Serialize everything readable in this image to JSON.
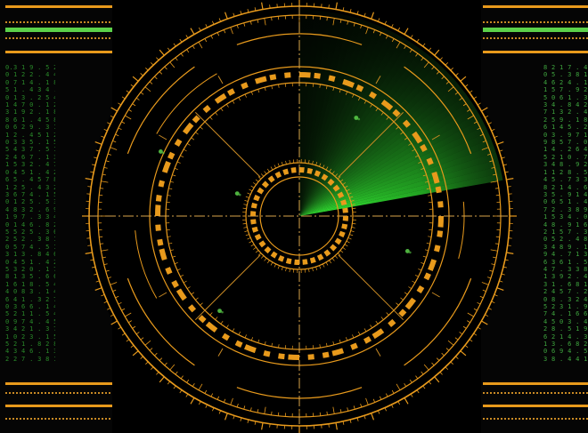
{
  "colors": {
    "amber": "#e89a1c",
    "amber_dim": "#b57b1e",
    "green": "#5cd14a",
    "sweep": "#39ff39",
    "background": "#000000"
  },
  "radar": {
    "sweep_start_deg": -90,
    "sweep_end_deg": -10,
    "blips": [
      {
        "angle_deg": 205,
        "range": 0.74
      },
      {
        "angle_deg": 200,
        "range": 0.32
      },
      {
        "angle_deg": 18,
        "range": 0.55
      },
      {
        "angle_deg": 130,
        "range": 0.6
      },
      {
        "angle_deg": 300,
        "range": 0.55
      }
    ]
  },
  "left_panel": {
    "lines": [
      "0.3 1 9 . 5 2 7",
      "0 1 2 2 . 4 4 9",
      "0 7 1 4 . 1 8 7",
      "5 1 . 4 3 4 . 4",
      "0 1 3 . 2 5 4 4",
      "1 4 7 0 . 1 2 4",
      "3 1 9 2 . 1 8 4",
      "8 6 1 . 4 5 8 9",
      "0 6 2 9 . 3 1 8",
      "1 2 . 4 5 1 2 5",
      "0 3 3 5 . 1 5 6",
      "5 4 3 7 . 5 1 4",
      "2 4 6 7 . 1 3 6",
      "1 5 3 2 . 4 7 3",
      "0 4 5 1 . 4 2 2",
      "6 5 . 4 5 7 8 3",
      "1 2 5 . 4 3 2 6",
      "3 6 7 4 . 1 5 2",
      "0 1 2 5 . 5 3 6",
      "4 8 3 2 . 6 9 1",
      "1 9 7 . 3 3 4 6",
      "0 1 4 6 . 8 2 4",
      "5 5 2 5 . 3 6 4",
      "2 5 2 . 3 8 1 4",
      "0 5 7 4 . 5 1 2",
      "3 1 3 . 8 4 6 1",
      "0 4 5 1 . 4 2 9",
      "5 3 2 0 . 1 7 3",
      "8 1 3 5 . 6 6 4",
      "1 6 1 8 . 5 4 0",
      "4 0 8 3 . 1 4 0",
      "6 4 1 . 3 2 7 8",
      "0 3 6 6 . 1 4 1",
      "5 2 1 1 . 5 4 7",
      "0 9 7 4 . 4 5 2",
      "3 4 2 1 . 3 7 6",
      "1 0 2 3 . 1 5 1",
      "5 2 1 . 8 2 8 0",
      "4 3 4 6 . 1 3 4",
      "2 2 7 . 3 8 1 4"
    ]
  },
  "right_panel": {
    "lines": [
      "8 2 1 7 . 4",
      "0 5 . 3 8 1",
      "4 6 2 4 . 1",
      "1 5 7 . 9 2",
      "5 0 6 1 . 3",
      "3 4 . 8 4 2",
      "7 1 3 2 . 4",
      "2 5 9 . 1 8",
      "6 1 4 5 . 2",
      "0 3 . 9 7 1",
      "9 8 5 7 . 0",
      "1 4 . 2 6 4",
      "5 2 1 0 . 7",
      "3 4 8 . 9 2",
      "1 1 2 8 . 5",
      "4 5 . 7 3 3",
      "8 2 1 4 . 6",
      "3 5 . 9 1 4",
      "0 6 5 1 . 4",
      "7 2 . 3 8 9",
      "1 5 3 4 . 0",
      "4 8 . 9 1 6",
      "2 1 5 7 . 3",
      "0 5 2 . 4 8",
      "3 4 8 9 . 1",
      "9 4 . 7 1 3",
      "6 3 6 1 . 5",
      "4 7 . 3 3 8",
      "1 3 9 2 . 4",
      "3 1 . 6 8 1",
      "2 4 5 7 . 2",
      "0 8 . 3 2 4",
      "5 2 3 1 . 9",
      "7 4 . 1 6 6",
      "4 5 0 3 . 4",
      "2 8 . 5 1 9",
      "6 2 1 4 . 3",
      "1 3 . 6 8 2",
      "0 6 9 4 . 5",
      "3 8 . 4 4 1"
    ]
  }
}
